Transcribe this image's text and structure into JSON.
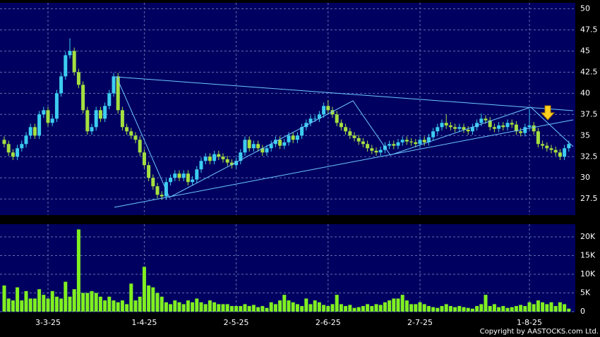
{
  "chart_data": {
    "type": "candlestick",
    "categories": [
      null,
      null,
      null,
      null,
      null,
      null,
      null,
      null,
      null,
      null,
      "3-3-25",
      null,
      null,
      null,
      null,
      null,
      null,
      null,
      null,
      null,
      null,
      null,
      null,
      null,
      null,
      null,
      null,
      null,
      null,
      null,
      null,
      null,
      "1-4-25",
      null,
      null,
      null,
      null,
      null,
      null,
      null,
      null,
      null,
      null,
      null,
      null,
      null,
      null,
      null,
      null,
      null,
      null,
      null,
      null,
      "2-5-25",
      null,
      null,
      null,
      null,
      null,
      null,
      null,
      null,
      null,
      null,
      null,
      null,
      null,
      null,
      null,
      null,
      null,
      null,
      null,
      null,
      "2-6-25",
      null,
      null,
      null,
      null,
      null,
      null,
      null,
      null,
      null,
      null,
      null,
      null,
      null,
      null,
      null,
      null,
      null,
      null,
      null,
      null,
      "2-7-25",
      null,
      null,
      null,
      null,
      null,
      null,
      null,
      null,
      null,
      null,
      null,
      null,
      null,
      null,
      null,
      null,
      null,
      null,
      null,
      null,
      null,
      null,
      null,
      null,
      "1-8-25",
      null,
      null,
      null,
      null,
      null,
      null,
      null,
      null,
      null
    ],
    "open": [
      34.5,
      34,
      33,
      32.5,
      33.5,
      34,
      35,
      36,
      35,
      37.5,
      38,
      36.5,
      37,
      40,
      42,
      44.5,
      45,
      42.5,
      41,
      38,
      35.5,
      36,
      38,
      37,
      38.5,
      40,
      42,
      38,
      36,
      35.5,
      35,
      34.5,
      33,
      31.5,
      30,
      29,
      28,
      27.8,
      29.5,
      30,
      30.5,
      30,
      30.5,
      29.5,
      29.8,
      31,
      32,
      32.5,
      32,
      32.8,
      32.5,
      32.2,
      31.8,
      31.5,
      32,
      33,
      34.5,
      33.5,
      34,
      33.5,
      33,
      33.5,
      34,
      34.5,
      33.8,
      34.2,
      35,
      34.5,
      35,
      36,
      36.5,
      37,
      37,
      37.5,
      38.5,
      38,
      37.5,
      36.5,
      36,
      35.5,
      35,
      34.7,
      34.3,
      34,
      33.5,
      33.2,
      33,
      33.3,
      33.8,
      34,
      33.8,
      34.2,
      34.5,
      34.3,
      34.2,
      34,
      34.5,
      34.2,
      34.8,
      35.5,
      36,
      36.5,
      36.2,
      36,
      35.8,
      36,
      35.7,
      35.5,
      36,
      36.5,
      37,
      36.8,
      36,
      35.8,
      36.2,
      36,
      36.5,
      36.3,
      35.5,
      35.3,
      36,
      36.2,
      35.5,
      34,
      33.8,
      33.5,
      33.3,
      33,
      32.5,
      33.5
    ],
    "high": [
      34.9,
      34.4,
      33.4,
      33.9,
      34.4,
      35.4,
      36.4,
      36.4,
      37.9,
      38.4,
      38.4,
      37.4,
      40.4,
      42.4,
      44.9,
      46.5,
      45.4,
      42.9,
      41.4,
      38.4,
      36.4,
      38.4,
      38.4,
      38.9,
      40.4,
      42.4,
      42.4,
      38.4,
      36.4,
      35.9,
      35.4,
      34.9,
      33.4,
      31.9,
      30.4,
      29.4,
      28.4,
      29.9,
      30.4,
      30.9,
      30.9,
      30.9,
      30.9,
      30.2,
      31.4,
      32.4,
      32.9,
      32.9,
      33.2,
      33.2,
      32.9,
      32.6,
      32.2,
      32.4,
      33.4,
      34.9,
      34.9,
      34.4,
      34.4,
      33.9,
      33.9,
      34.4,
      34.9,
      34.9,
      34.6,
      35.4,
      35.4,
      35.4,
      36.4,
      36.9,
      37.4,
      37.4,
      37.9,
      38.9,
      39.2,
      38.4,
      37.9,
      36.9,
      36.4,
      35.9,
      35.4,
      35.1,
      34.7,
      34.4,
      33.9,
      33.6,
      33.7,
      34.2,
      34.4,
      34.4,
      34.6,
      34.9,
      34.9,
      34.7,
      34.6,
      34.9,
      34.9,
      35.2,
      35.9,
      36.4,
      36.9,
      37.5,
      36.6,
      36.4,
      36.4,
      36.4,
      36.1,
      36.4,
      36.9,
      37.6,
      37.4,
      37.2,
      36.4,
      36.6,
      36.6,
      36.9,
      36.9,
      36.7,
      35.9,
      36.4,
      38.2,
      36.6,
      35.9,
      34.4,
      34.2,
      33.9,
      33.7,
      33.4,
      33.9,
      34.4
    ],
    "low": [
      33.6,
      32.6,
      32.1,
      32.1,
      33.1,
      33.6,
      34.6,
      34.6,
      34.6,
      37.1,
      36.1,
      36.1,
      36.6,
      39.6,
      41.6,
      44.1,
      42.1,
      40.6,
      37.6,
      35.1,
      35.1,
      35.6,
      36.6,
      36.6,
      38.1,
      39.6,
      37.6,
      35.6,
      35.1,
      34.6,
      34.1,
      32.6,
      31.1,
      29.6,
      28.6,
      27.6,
      27.4,
      27.4,
      29.1,
      29.6,
      29.6,
      29.6,
      29.1,
      29.1,
      29.4,
      30.6,
      31.6,
      31.6,
      31.6,
      32.1,
      31.8,
      31.4,
      31.1,
      31.1,
      31.6,
      32.6,
      33.1,
      33.1,
      33.1,
      32.6,
      32.6,
      33.1,
      33.6,
      33.4,
      33.4,
      33.8,
      34.1,
      34.1,
      34.6,
      35.6,
      36.1,
      36.6,
      36.6,
      37.1,
      37.6,
      37.1,
      36.1,
      35.6,
      35.1,
      34.6,
      34.3,
      33.9,
      33.6,
      33.1,
      32.8,
      32.6,
      32.6,
      32.9,
      33.4,
      33.4,
      33.4,
      33.8,
      33.9,
      33.8,
      33.6,
      33.6,
      33.8,
      33.8,
      34.4,
      35.1,
      35.6,
      35.8,
      35.6,
      35.4,
      35.4,
      35.3,
      35.1,
      35.1,
      35.6,
      36.1,
      36.4,
      35.6,
      35.4,
      35.4,
      35.6,
      35.6,
      35.9,
      35.1,
      34.9,
      34.9,
      35.6,
      35.1,
      33.6,
      33.4,
      33.1,
      32.9,
      32.6,
      32.1,
      32.1,
      33.1
    ],
    "close": [
      34,
      33,
      32.5,
      33.5,
      34,
      35,
      36,
      35,
      37.5,
      38,
      36.5,
      37,
      40,
      42,
      44.5,
      45,
      42.5,
      41,
      38,
      35.5,
      36,
      38,
      37,
      38.5,
      40,
      42,
      38,
      36,
      35.5,
      35,
      34.5,
      33,
      31.5,
      30,
      29,
      28,
      27.8,
      29.5,
      30,
      30.5,
      30,
      30.5,
      29.5,
      29.8,
      31,
      32,
      32.5,
      32,
      32.8,
      32.5,
      32.2,
      31.8,
      31.5,
      32,
      33,
      34.5,
      33.5,
      34,
      33.5,
      33,
      33.5,
      34,
      34.5,
      33.8,
      34.2,
      35,
      34.5,
      35,
      36,
      36.5,
      37,
      37,
      37.5,
      38.5,
      38,
      37.5,
      36.5,
      36,
      35.5,
      35,
      34.7,
      34.3,
      34,
      33.5,
      33.2,
      33,
      33.3,
      33.8,
      34,
      33.8,
      34.2,
      34.5,
      34.3,
      34.2,
      34,
      34.5,
      34.2,
      34.8,
      35.5,
      36,
      36.5,
      36.2,
      36,
      35.8,
      36,
      35.7,
      35.5,
      36,
      36.5,
      37,
      36.8,
      36,
      35.8,
      36.2,
      36,
      36.5,
      36.3,
      35.5,
      35.3,
      36,
      36.2,
      35.5,
      34,
      33.8,
      33.5,
      33.3,
      33,
      32.5,
      33.5,
      34
    ],
    "volume": [
      7000,
      3500,
      3000,
      6500,
      3000,
      5500,
      3500,
      3500,
      6000,
      4500,
      3500,
      5500,
      4000,
      3500,
      8000,
      4000,
      6000,
      22000,
      5000,
      5000,
      5500,
      5000,
      4000,
      3000,
      4000,
      3000,
      2500,
      3000,
      2000,
      7500,
      3000,
      4000,
      12000,
      7000,
      6500,
      5000,
      4000,
      2500,
      2000,
      3000,
      2500,
      2000,
      3000,
      2500,
      3500,
      2500,
      2000,
      3000,
      2500,
      2000,
      2000,
      2000,
      1500,
      1500,
      1500,
      2000,
      1500,
      1800,
      1200,
      1500,
      1000,
      2500,
      2000,
      3000,
      4500,
      3000,
      2500,
      2000,
      1500,
      3500,
      2000,
      3000,
      2500,
      1800,
      1500,
      2000,
      4500,
      2000,
      1500,
      1800,
      1000,
      1200,
      1500,
      2000,
      1500,
      2000,
      1800,
      2500,
      3000,
      3500,
      3500,
      4500,
      3000,
      2000,
      2000,
      2500,
      2000,
      1500,
      1200,
      1000,
      1500,
      2000,
      1500,
      1200,
      1500,
      1200,
      1000,
      800,
      1500,
      2000,
      4500,
      1500,
      2000,
      1200,
      1500,
      1000,
      1200,
      1500,
      1800,
      1500,
      2500,
      2000,
      3000,
      2500,
      2000,
      2500,
      1500,
      2500,
      2000,
      800
    ],
    "up_color": "#3ccdf0",
    "down_color": "#a4e040",
    "volume_color": "#80f020",
    "ylim": [
      25.6,
      50.7
    ],
    "yticks": [
      27.5,
      30,
      32.5,
      35,
      37.5,
      40,
      42.5,
      45,
      47.5,
      50
    ],
    "volume_ylim": [
      0,
      23400
    ],
    "volume_yticks": [
      0,
      {
        "value": 5000,
        "label": "5K"
      },
      {
        "value": 10000,
        "label": "10K"
      },
      {
        "value": 15000,
        "label": "15K"
      },
      {
        "value": 20000,
        "label": "20K"
      }
    ],
    "grid": true,
    "copyright": "Copyright by AASTOCKS.com Ltd."
  }
}
